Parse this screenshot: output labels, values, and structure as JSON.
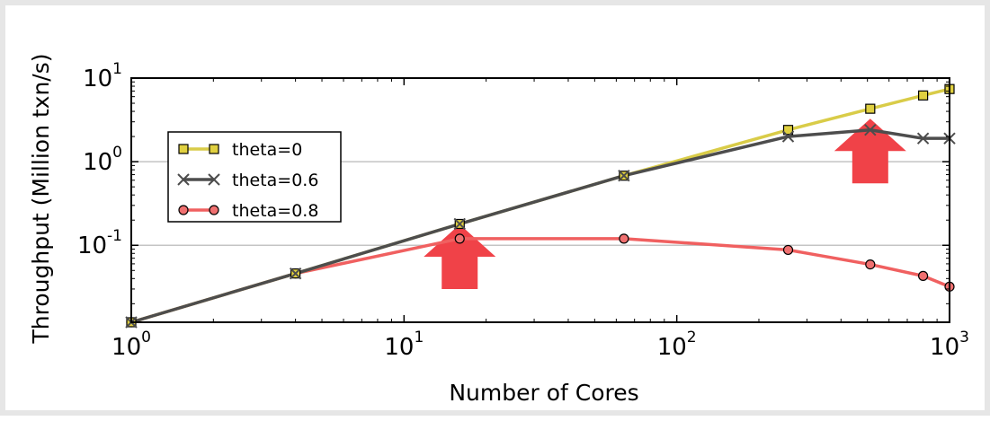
{
  "chart_data": {
    "type": "line",
    "title": "",
    "xlabel": "Number of Cores",
    "ylabel": "Throughput (Million txn/s)",
    "xscale": "log",
    "yscale": "log",
    "xlim": [
      1,
      1000
    ],
    "ylim": [
      0.012,
      10
    ],
    "x_ticks": [
      {
        "base": "10",
        "exp": "0",
        "value": 1
      },
      {
        "base": "10",
        "exp": "1",
        "value": 10
      },
      {
        "base": "10",
        "exp": "2",
        "value": 100
      },
      {
        "base": "10",
        "exp": "3",
        "value": 1000
      }
    ],
    "y_ticks": [
      {
        "base": "10",
        "exp": "-1",
        "value": 0.1
      },
      {
        "base": "10",
        "exp": "0",
        "value": 1
      },
      {
        "base": "10",
        "exp": "1",
        "value": 10
      }
    ],
    "grid": "horizontal",
    "legend_position": "left-center",
    "series": [
      {
        "name": "theta=0",
        "color": "#e0d040",
        "line_color": "#d9cc48",
        "marker": "square",
        "x": [
          1,
          4,
          16,
          64,
          256,
          512,
          800,
          1000
        ],
        "y": [
          0.012,
          0.046,
          0.18,
          0.68,
          2.4,
          4.3,
          6.2,
          7.4
        ]
      },
      {
        "name": "theta=0.6",
        "color": "#4d4d4d",
        "line_color": "#4d4d4d",
        "marker": "x",
        "x": [
          1,
          4,
          16,
          64,
          256,
          512,
          800,
          1000
        ],
        "y": [
          0.012,
          0.046,
          0.18,
          0.68,
          2.0,
          2.4,
          1.9,
          1.9
        ]
      },
      {
        "name": "theta=0.8",
        "color": "#f07070",
        "line_color": "#f06060",
        "marker": "circle",
        "x": [
          1,
          4,
          16,
          64,
          256,
          512,
          800,
          1000
        ],
        "y": [
          0.012,
          0.046,
          0.12,
          0.12,
          0.088,
          0.059,
          0.043,
          0.032
        ]
      }
    ],
    "annotations": [
      {
        "type": "arrow-up",
        "x": 16,
        "y_bottom": 0.03,
        "color": "#f04248"
      },
      {
        "type": "arrow-up",
        "x": 512,
        "y_bottom": 0.55,
        "color": "#f04248"
      }
    ]
  }
}
